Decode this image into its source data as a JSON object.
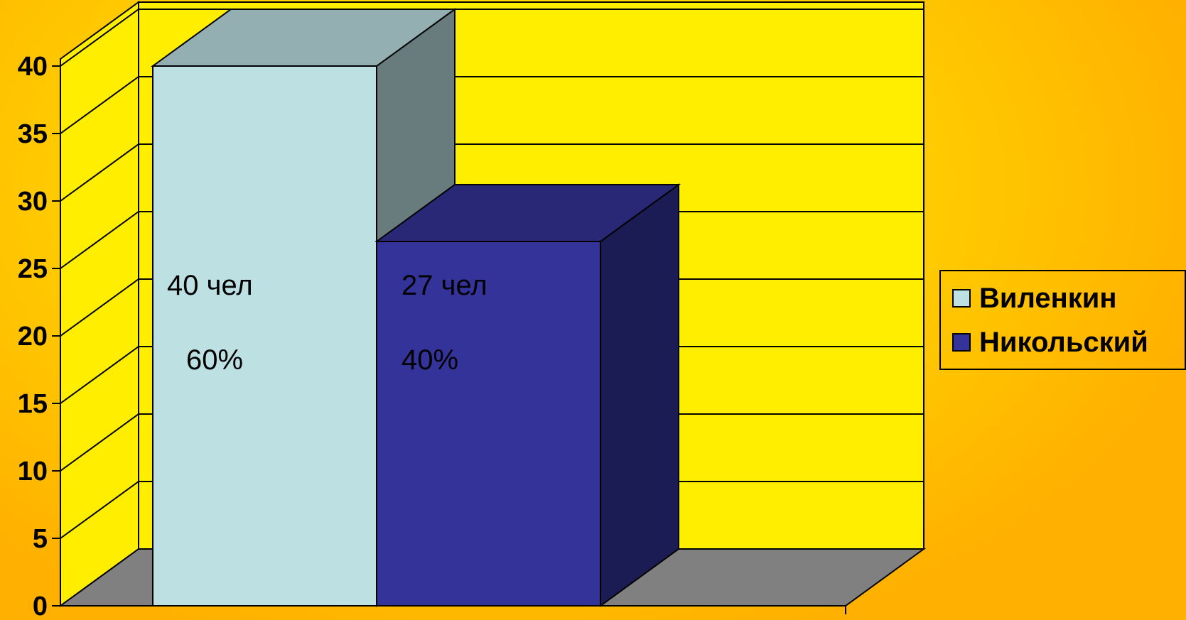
{
  "chart_data": {
    "type": "bar",
    "three_d": true,
    "title": "",
    "xlabel": "",
    "ylabel": "",
    "ylim": [
      0,
      40
    ],
    "ytick_step": 5,
    "yticks": [
      "0",
      "5",
      "10",
      "15",
      "20",
      "25",
      "30",
      "35",
      "40"
    ],
    "grid": true,
    "legend_position": "right",
    "series": [
      {
        "name": "Виленкин",
        "values": [
          40
        ],
        "color": "#bde0e3",
        "labels": [
          "40 чел",
          "60%"
        ]
      },
      {
        "name": "Никольский",
        "values": [
          27
        ],
        "color": "#333399",
        "labels": [
          "27 чел",
          "40%"
        ]
      }
    ]
  },
  "colors": {
    "wall": "#ffee00",
    "floor": "#808080",
    "background": "#ffcc00"
  }
}
